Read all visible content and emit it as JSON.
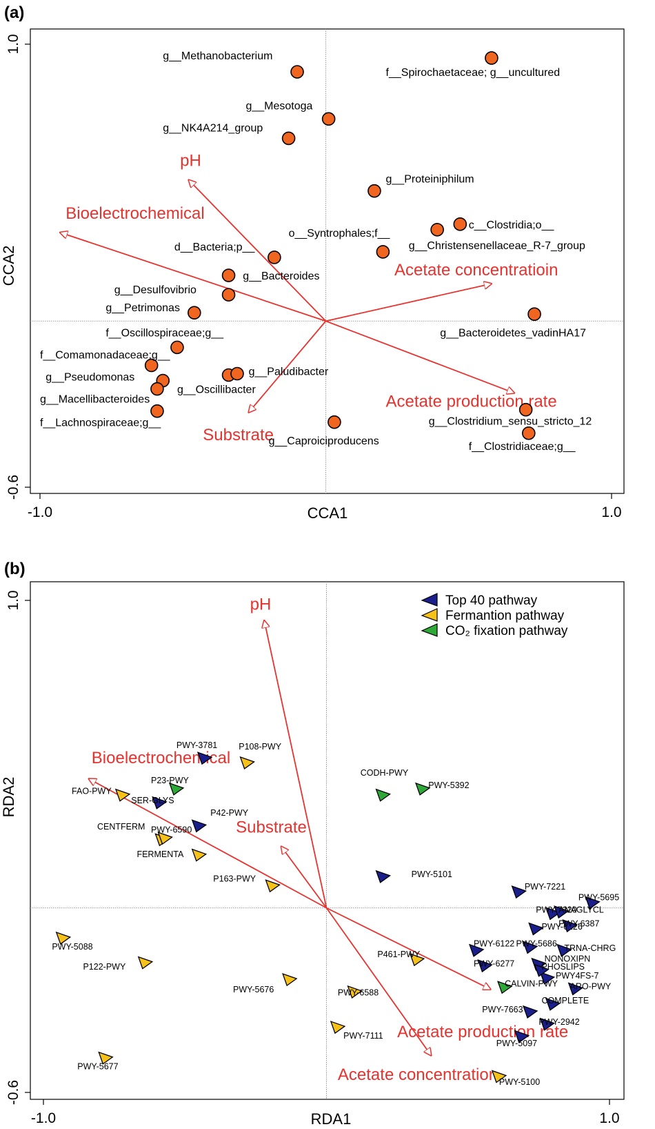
{
  "colors": {
    "species": "#f0651f",
    "top40": "#1a1f8c",
    "fermentation": "#f6c21a",
    "co2": "#2ea836",
    "vector": "#e8322e",
    "grid": "#999999"
  },
  "chart_data": [
    {
      "type": "scatter",
      "panel": "(a)",
      "title": "",
      "xlabel": "CCA1",
      "ylabel": "CCA2",
      "xlim": [
        -1.0,
        1.0
      ],
      "ylim": [
        -0.6,
        1.0
      ],
      "xticks": [
        {
          "value": -1.0,
          "label": "-1.0"
        },
        {
          "value": 1.0,
          "label": "1.0"
        }
      ],
      "yticks": [
        {
          "value": -0.6,
          "label": "-0.6"
        },
        {
          "value": 1.0,
          "label": "1.0"
        }
      ],
      "points": [
        {
          "label": "g__Methanobacterium",
          "x": -0.1,
          "y": 0.9,
          "lx": -0.57,
          "ly": 0.945
        },
        {
          "label": "f__Spirochaetaceae; g__uncultured",
          "x": 0.58,
          "y": 0.95,
          "lx": 0.21,
          "ly": 0.885
        },
        {
          "label": "g__Mesotoga",
          "x": 0.01,
          "y": 0.73,
          "lx": -0.28,
          "ly": 0.765
        },
        {
          "label": "g__NK4A214_group",
          "x": -0.13,
          "y": 0.66,
          "lx": -0.57,
          "ly": 0.685
        },
        {
          "label": "g__Proteiniphilum",
          "x": 0.17,
          "y": 0.47,
          "lx": 0.21,
          "ly": 0.5
        },
        {
          "label": "c__Clostridia;o__",
          "x": 0.47,
          "y": 0.35,
          "lx": 0.5,
          "ly": 0.335
        },
        {
          "label": "o__Syntrophales;f__",
          "x": 0.39,
          "y": 0.33,
          "lx": -0.13,
          "ly": 0.305
        },
        {
          "label": "g__Christensenellaceae_R-7_group",
          "x": 0.2,
          "y": 0.25,
          "lx": 0.29,
          "ly": 0.26
        },
        {
          "label": "d__Bacteria;p__",
          "x": -0.18,
          "y": 0.23,
          "lx": -0.53,
          "ly": 0.255
        },
        {
          "label": "g__Bacteroides",
          "x": -0.34,
          "y": 0.165,
          "lx": -0.29,
          "ly": 0.15
        },
        {
          "label": "g__Desulfovibrio",
          "x": -0.34,
          "y": 0.095,
          "lx": -0.74,
          "ly": 0.1
        },
        {
          "label": "g__Petrimonas",
          "x": -0.46,
          "y": 0.03,
          "lx": -0.77,
          "ly": 0.035
        },
        {
          "label": "g__Bacteroidetes_vadinHA17",
          "x": 0.73,
          "y": 0.025,
          "lx": 0.4,
          "ly": -0.055
        },
        {
          "label": "f__Oscillospiraceae;g__",
          "x": -0.52,
          "y": -0.095,
          "lx": -0.77,
          "ly": -0.055
        },
        {
          "label": "f__Comamonadaceae;g__",
          "x": -0.61,
          "y": -0.16,
          "lx": -1.0,
          "ly": -0.135
        },
        {
          "label": "g__Pseudomonas",
          "x": -0.57,
          "y": -0.215,
          "lx": -0.98,
          "ly": -0.215
        },
        {
          "label": "g__Paludibacter",
          "x": -0.34,
          "y": -0.195,
          "lx": -0.27,
          "ly": -0.195
        },
        {
          "label": "g__Oscillibacter",
          "x": -0.31,
          "y": -0.19,
          "lx": -0.52,
          "ly": -0.26
        },
        {
          "label": "g__Macellibacteroides",
          "x": -0.59,
          "y": -0.245,
          "lx": -1.0,
          "ly": -0.295
        },
        {
          "label": "f__Lachnospiraceae;g__",
          "x": -0.59,
          "y": -0.325,
          "lx": -1.0,
          "ly": -0.38
        },
        {
          "label": "g__Caproiciproducens",
          "x": 0.03,
          "y": -0.365,
          "lx": -0.2,
          "ly": -0.445
        },
        {
          "label": "g__Clostridium_sensu_stricto_12",
          "x": 0.7,
          "y": -0.32,
          "lx": 0.36,
          "ly": -0.375
        },
        {
          "label": "f__Clostridiaceae;g__",
          "x": 0.71,
          "y": -0.405,
          "lx": 0.5,
          "ly": -0.465
        }
      ],
      "vectors": [
        {
          "label": "pH",
          "x": -0.48,
          "y": 0.51,
          "lx": -0.51,
          "ly": 0.56
        },
        {
          "label": "Bioelectrochemical",
          "x": -0.93,
          "y": 0.32,
          "lx": -0.91,
          "ly": 0.37
        },
        {
          "label": "Acetate concentratioin",
          "x": 0.58,
          "y": 0.135,
          "lx": 0.24,
          "ly": 0.165
        },
        {
          "label": "Acetate production rate",
          "x": 0.66,
          "y": -0.26,
          "lx": 0.21,
          "ly": -0.31
        },
        {
          "label": "Substrate",
          "x": -0.27,
          "y": -0.33,
          "lx": -0.43,
          "ly": -0.43
        }
      ]
    },
    {
      "type": "scatter",
      "panel": "(b)",
      "title": "",
      "xlabel": "RDA1",
      "ylabel": "RDA2",
      "xlim": [
        -1.0,
        1.0
      ],
      "ylim": [
        -0.6,
        1.0
      ],
      "xticks": [
        {
          "value": -1.0,
          "label": "-1.0"
        },
        {
          "value": 1.0,
          "label": "1.0"
        }
      ],
      "yticks": [
        {
          "value": -0.6,
          "label": "-0.6"
        },
        {
          "value": 1.0,
          "label": "1.0"
        }
      ],
      "legend": [
        {
          "name": "Top 40 pathway",
          "group": "top40"
        },
        {
          "name": "Fermantion pathway",
          "group": "fermentation"
        },
        {
          "name": "CO₂ fixation pathway",
          "group": "co2"
        }
      ],
      "points": [
        {
          "label": "PWY-3781",
          "group": "top40",
          "x": -0.43,
          "y": 0.49,
          "lx": -0.53,
          "ly": 0.52
        },
        {
          "label": "P108-PWY",
          "group": "fermentation",
          "x": -0.28,
          "y": 0.475,
          "lx": -0.31,
          "ly": 0.515
        },
        {
          "label": "P23-PWY",
          "group": "co2",
          "x": -0.53,
          "y": 0.39,
          "lx": -0.62,
          "ly": 0.405
        },
        {
          "label": "FAO-PWY",
          "group": "fermentation",
          "x": -0.72,
          "y": 0.37,
          "lx": -0.9,
          "ly": 0.37
        },
        {
          "label": "SER-GLYS",
          "group": "top40",
          "x": -0.59,
          "y": 0.345,
          "lx": -0.69,
          "ly": 0.34
        },
        {
          "label": "CODH-PWY",
          "group": "co2",
          "x": 0.2,
          "y": 0.37,
          "lx": 0.12,
          "ly": 0.43
        },
        {
          "label": "PWY-5392",
          "group": "co2",
          "x": 0.34,
          "y": 0.39,
          "lx": 0.36,
          "ly": 0.39
        },
        {
          "label": "P42-PWY",
          "group": "top40",
          "x": -0.45,
          "y": 0.27,
          "lx": -0.41,
          "ly": 0.3
        },
        {
          "label": "CENTFERM",
          "group": "fermentation",
          "x": -0.58,
          "y": 0.225,
          "lx": -0.81,
          "ly": 0.255
        },
        {
          "label": "PWY-6590",
          "group": "fermentation",
          "x": -0.57,
          "y": 0.23,
          "lx": -0.62,
          "ly": 0.245
        },
        {
          "label": "FERMENTA",
          "group": "fermentation",
          "x": -0.45,
          "y": 0.175,
          "lx": -0.67,
          "ly": 0.165
        },
        {
          "label": "P163-PWY",
          "group": "fermentation",
          "x": -0.19,
          "y": 0.075,
          "lx": -0.4,
          "ly": 0.085
        },
        {
          "label": "PWY-5101",
          "group": "top40",
          "x": 0.2,
          "y": 0.105,
          "lx": 0.3,
          "ly": 0.1
        },
        {
          "label": "PWY-7221",
          "group": "top40",
          "x": 0.68,
          "y": 0.055,
          "lx": 0.7,
          "ly": 0.06
        },
        {
          "label": "PWY-5695",
          "group": "top40",
          "x": 0.94,
          "y": 0.02,
          "lx": 0.89,
          "ly": 0.025
        },
        {
          "label": "PWY-7220",
          "group": "top40",
          "x": 0.8,
          "y": -0.015,
          "lx": 0.74,
          "ly": -0.015
        },
        {
          "label": "ANAGLYCL",
          "group": "top40",
          "x": 0.83,
          "y": -0.01,
          "lx": 0.82,
          "ly": -0.015
        },
        {
          "label": "PWY-5097",
          "group": "top40",
          "x": 0.69,
          "y": -0.415,
          "lx": 0.6,
          "ly": -0.45
        },
        {
          "label": "PWY-5088",
          "group": "fermentation",
          "x": -0.93,
          "y": -0.095,
          "lx": -0.97,
          "ly": -0.135
        },
        {
          "label": "P122-PWY",
          "group": "fermentation",
          "x": -0.64,
          "y": -0.175,
          "lx": -0.86,
          "ly": -0.2
        },
        {
          "label": "PWY-5676",
          "group": "fermentation",
          "x": -0.13,
          "y": -0.23,
          "lx": -0.33,
          "ly": -0.275
        },
        {
          "label": "PWY-6588",
          "group": "fermentation",
          "x": 0.1,
          "y": -0.27,
          "lx": 0.04,
          "ly": -0.285
        },
        {
          "label": "P461-PWY",
          "group": "fermentation",
          "x": 0.32,
          "y": -0.165,
          "lx": 0.18,
          "ly": -0.16
        },
        {
          "label": "PWY-7111",
          "group": "fermentation",
          "x": 0.04,
          "y": -0.385,
          "lx": 0.06,
          "ly": -0.425
        },
        {
          "label": "PWY-5677",
          "group": "fermentation",
          "x": -0.78,
          "y": -0.485,
          "lx": -0.88,
          "ly": -0.525
        },
        {
          "label": "PWY-5100",
          "group": "fermentation",
          "x": 0.61,
          "y": -0.545,
          "lx": 0.61,
          "ly": -0.575
        },
        {
          "label": "PWY-6122",
          "group": "top40",
          "x": 0.53,
          "y": -0.135,
          "lx": 0.52,
          "ly": -0.125
        },
        {
          "label": "PWY-6277",
          "group": "top40",
          "x": 0.56,
          "y": -0.185,
          "lx": 0.52,
          "ly": -0.19
        },
        {
          "label": "PWY-5686",
          "group": "top40",
          "x": 0.72,
          "y": -0.125,
          "lx": 0.67,
          "ly": -0.125
        },
        {
          "label": "PWY-6126",
          "group": "top40",
          "x": 0.74,
          "y": -0.065,
          "lx": 0.76,
          "ly": -0.07
        },
        {
          "label": "PWY-6387",
          "group": "top40",
          "x": 0.86,
          "y": -0.055,
          "lx": 0.82,
          "ly": -0.06
        },
        {
          "label": "TRNA-CHRG",
          "group": "top40",
          "x": 0.84,
          "y": -0.135,
          "lx": 0.84,
          "ly": -0.14
        },
        {
          "label": "PWY-7663",
          "group": "top40",
          "x": 0.72,
          "y": -0.335,
          "lx": 0.55,
          "ly": -0.34
        },
        {
          "label": "COMPLETE",
          "group": "top40",
          "x": 0.8,
          "y": -0.31,
          "lx": 0.76,
          "ly": -0.31
        },
        {
          "label": "CALVIN-PWY",
          "group": "co2",
          "x": 0.63,
          "y": -0.255,
          "lx": 0.63,
          "ly": -0.255
        },
        {
          "label": "ARO-PWY",
          "group": "top40",
          "x": 0.88,
          "y": -0.26,
          "lx": 0.86,
          "ly": -0.265
        },
        {
          "label": "PWY-2942",
          "group": "top40",
          "x": 0.78,
          "y": -0.375,
          "lx": 0.75,
          "ly": -0.38
        },
        {
          "label": "PWY4FS-7",
          "group": "top40",
          "x": 0.78,
          "y": -0.225,
          "lx": 0.81,
          "ly": -0.23
        },
        {
          "label": "NONOXIPN",
          "group": "top40",
          "x": 0.75,
          "y": -0.18,
          "lx": 0.77,
          "ly": -0.175
        },
        {
          "label": "PHOSLIPS",
          "group": "top40",
          "x": 0.76,
          "y": -0.2,
          "lx": 0.76,
          "ly": -0.2
        }
      ],
      "vectors": [
        {
          "label": "pH",
          "x": -0.22,
          "y": 0.935,
          "lx": -0.27,
          "ly": 0.97
        },
        {
          "label": "Bioelectrochemical",
          "x": -0.84,
          "y": 0.42,
          "lx": -0.83,
          "ly": 0.47
        },
        {
          "label": "Substrate",
          "x": -0.16,
          "y": 0.2,
          "lx": -0.32,
          "ly": 0.245
        },
        {
          "label": "Acetate production rate",
          "x": 0.58,
          "y": -0.265,
          "lx": 0.25,
          "ly": -0.42
        },
        {
          "label": "Acetate concentration",
          "x": 0.37,
          "y": -0.48,
          "lx": 0.04,
          "ly": -0.56
        }
      ]
    }
  ]
}
